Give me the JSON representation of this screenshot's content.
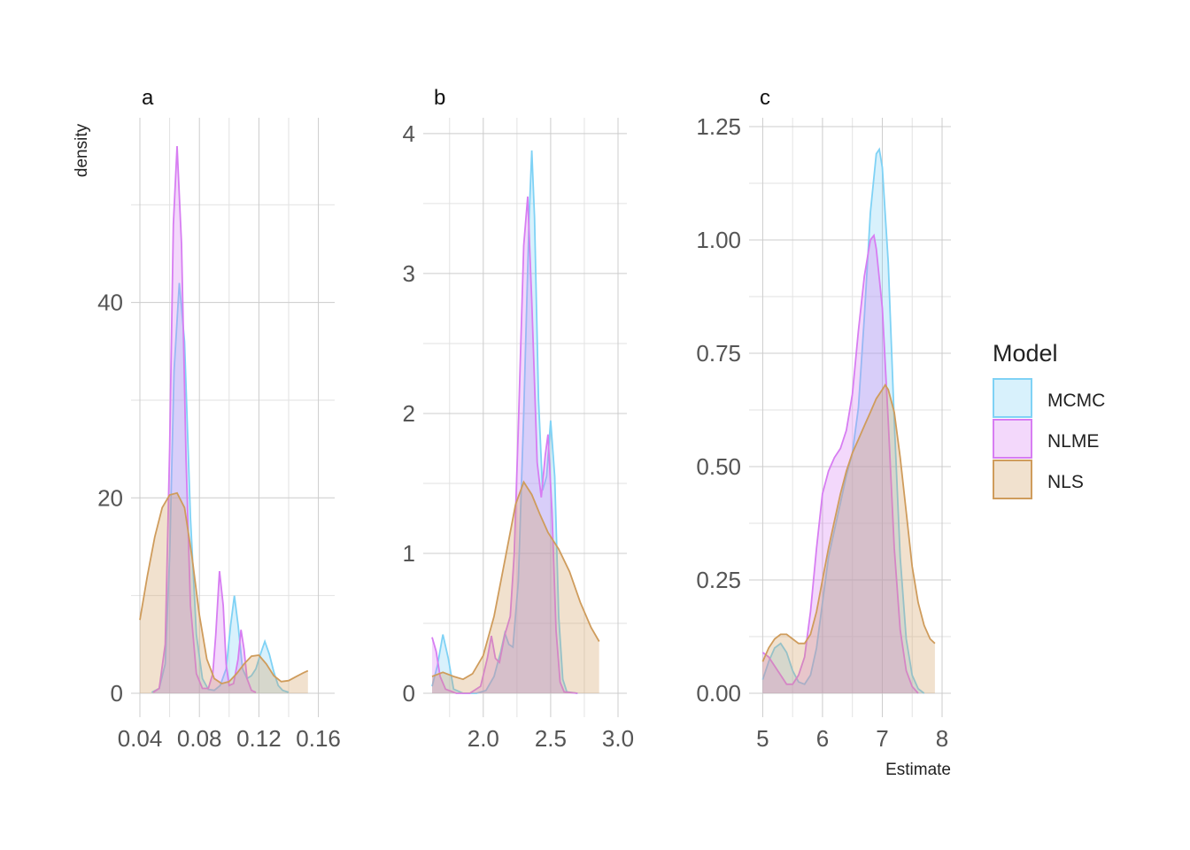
{
  "colors": {
    "MCMC": "#7fd2f5",
    "NLME": "#d77df2",
    "NLS": "#cf9c5c"
  },
  "legend": {
    "title": "Model",
    "items": [
      {
        "name": "MCMC",
        "label": "MCMC"
      },
      {
        "name": "NLME",
        "label": "NLME"
      },
      {
        "name": "NLS",
        "label": "NLS"
      }
    ]
  },
  "axis_titles": {
    "y": "density",
    "x": "Estimate"
  },
  "chart_data": [
    {
      "type": "area",
      "panel": "a",
      "xlim": [
        0.04,
        0.165
      ],
      "ylim": [
        0,
        58
      ],
      "xticks": [
        0.04,
        0.08,
        0.12,
        0.16
      ],
      "xtick_labels": [
        "0.04",
        "0.08",
        "0.12",
        "0.16"
      ],
      "yticks": [
        0,
        20,
        40
      ],
      "ytick_labels": [
        "0",
        "20",
        "40"
      ],
      "grid": true,
      "series": [
        {
          "name": "MCMC",
          "points": [
            [
              0.048,
              0.1
            ],
            [
              0.053,
              0.5
            ],
            [
              0.057,
              3
            ],
            [
              0.06,
              14
            ],
            [
              0.063,
              33
            ],
            [
              0.0665,
              42
            ],
            [
              0.07,
              36
            ],
            [
              0.074,
              18
            ],
            [
              0.078,
              6
            ],
            [
              0.082,
              1.5
            ],
            [
              0.086,
              0.4
            ],
            [
              0.09,
              0.3
            ],
            [
              0.094,
              0.8
            ],
            [
              0.098,
              2.5
            ],
            [
              0.101,
              7
            ],
            [
              0.1035,
              10
            ],
            [
              0.106,
              7
            ],
            [
              0.109,
              2.5
            ],
            [
              0.112,
              1.5
            ],
            [
              0.115,
              1.8
            ],
            [
              0.118,
              2.5
            ],
            [
              0.121,
              4
            ],
            [
              0.124,
              5.3
            ],
            [
              0.127,
              4
            ],
            [
              0.13,
              2.2
            ],
            [
              0.133,
              0.8
            ],
            [
              0.136,
              0.3
            ],
            [
              0.14,
              0.1
            ]
          ]
        },
        {
          "name": "NLME",
          "points": [
            [
              0.049,
              0.1
            ],
            [
              0.053,
              0.5
            ],
            [
              0.057,
              5
            ],
            [
              0.06,
              25
            ],
            [
              0.0625,
              48
            ],
            [
              0.065,
              56
            ],
            [
              0.068,
              46
            ],
            [
              0.071,
              24
            ],
            [
              0.074,
              9
            ],
            [
              0.078,
              2
            ],
            [
              0.082,
              0.5
            ],
            [
              0.086,
              0.5
            ],
            [
              0.089,
              2
            ],
            [
              0.091,
              6
            ],
            [
              0.0935,
              12.5
            ],
            [
              0.096,
              9
            ],
            [
              0.098,
              3
            ],
            [
              0.1,
              0.8
            ],
            [
              0.103,
              1
            ],
            [
              0.106,
              3.5
            ],
            [
              0.108,
              6.5
            ],
            [
              0.11,
              4.5
            ],
            [
              0.112,
              1.5
            ],
            [
              0.115,
              0.3
            ],
            [
              0.118,
              0.1
            ]
          ]
        },
        {
          "name": "NLS",
          "points": [
            [
              0.04,
              7.5
            ],
            [
              0.045,
              12
            ],
            [
              0.05,
              16
            ],
            [
              0.055,
              19
            ],
            [
              0.06,
              20.3
            ],
            [
              0.065,
              20.5
            ],
            [
              0.07,
              19
            ],
            [
              0.075,
              14
            ],
            [
              0.08,
              8
            ],
            [
              0.085,
              3.5
            ],
            [
              0.09,
              1.5
            ],
            [
              0.095,
              1
            ],
            [
              0.1,
              1.2
            ],
            [
              0.105,
              2
            ],
            [
              0.11,
              3
            ],
            [
              0.115,
              3.8
            ],
            [
              0.12,
              3.9
            ],
            [
              0.125,
              3
            ],
            [
              0.13,
              1.8
            ],
            [
              0.135,
              1.2
            ],
            [
              0.14,
              1.3
            ],
            [
              0.145,
              1.7
            ],
            [
              0.15,
              2.1
            ],
            [
              0.153,
              2.3
            ]
          ]
        }
      ]
    },
    {
      "type": "area",
      "panel": "b",
      "xlim": [
        1.62,
        3.0
      ],
      "ylim": [
        0,
        4.05
      ],
      "xticks": [
        2.0,
        2.5,
        3.0
      ],
      "xtick_labels": [
        "2.0",
        "2.5",
        "3.0"
      ],
      "yticks": [
        0,
        1,
        2,
        3,
        4
      ],
      "ytick_labels": [
        "0",
        "1",
        "2",
        "3",
        "4"
      ],
      "grid": true,
      "series": [
        {
          "name": "MCMC",
          "points": [
            [
              1.62,
              0.05
            ],
            [
              1.66,
              0.2
            ],
            [
              1.7,
              0.42
            ],
            [
              1.74,
              0.25
            ],
            [
              1.78,
              0.03
            ],
            [
              1.85,
              0.0
            ],
            [
              1.95,
              0.0
            ],
            [
              2.02,
              0.02
            ],
            [
              2.08,
              0.12
            ],
            [
              2.13,
              0.3
            ],
            [
              2.16,
              0.43
            ],
            [
              2.19,
              0.35
            ],
            [
              2.22,
              0.33
            ],
            [
              2.26,
              0.8
            ],
            [
              2.3,
              2.0
            ],
            [
              2.34,
              3.4
            ],
            [
              2.36,
              3.88
            ],
            [
              2.38,
              3.4
            ],
            [
              2.41,
              2.1
            ],
            [
              2.44,
              1.45
            ],
            [
              2.47,
              1.55
            ],
            [
              2.5,
              1.95
            ],
            [
              2.53,
              1.55
            ],
            [
              2.56,
              0.55
            ],
            [
              2.59,
              0.1
            ],
            [
              2.62,
              0.01
            ],
            [
              2.7,
              0.0
            ]
          ]
        },
        {
          "name": "NLME",
          "points": [
            [
              1.62,
              0.4
            ],
            [
              1.65,
              0.3
            ],
            [
              1.68,
              0.12
            ],
            [
              1.72,
              0.03
            ],
            [
              1.8,
              0.0
            ],
            [
              1.9,
              0.0
            ],
            [
              1.98,
              0.05
            ],
            [
              2.03,
              0.25
            ],
            [
              2.06,
              0.41
            ],
            [
              2.09,
              0.25
            ],
            [
              2.12,
              0.22
            ],
            [
              2.16,
              0.42
            ],
            [
              2.2,
              0.55
            ],
            [
              2.23,
              1.0
            ],
            [
              2.26,
              1.9
            ],
            [
              2.3,
              3.2
            ],
            [
              2.33,
              3.55
            ],
            [
              2.36,
              2.8
            ],
            [
              2.4,
              1.65
            ],
            [
              2.43,
              1.4
            ],
            [
              2.46,
              1.7
            ],
            [
              2.48,
              1.85
            ],
            [
              2.51,
              1.3
            ],
            [
              2.54,
              0.45
            ],
            [
              2.57,
              0.08
            ],
            [
              2.6,
              0.01
            ],
            [
              2.7,
              0.0
            ]
          ]
        },
        {
          "name": "NLS",
          "points": [
            [
              1.62,
              0.12
            ],
            [
              1.7,
              0.15
            ],
            [
              1.78,
              0.12
            ],
            [
              1.85,
              0.1
            ],
            [
              1.92,
              0.14
            ],
            [
              2.0,
              0.27
            ],
            [
              2.08,
              0.55
            ],
            [
              2.16,
              0.95
            ],
            [
              2.24,
              1.35
            ],
            [
              2.3,
              1.51
            ],
            [
              2.36,
              1.42
            ],
            [
              2.42,
              1.28
            ],
            [
              2.48,
              1.15
            ],
            [
              2.56,
              1.03
            ],
            [
              2.64,
              0.87
            ],
            [
              2.72,
              0.65
            ],
            [
              2.8,
              0.47
            ],
            [
              2.86,
              0.37
            ]
          ]
        }
      ]
    },
    {
      "type": "area",
      "panel": "c",
      "xlim": [
        4.92,
        8.0
      ],
      "ylim": [
        0,
        1.25
      ],
      "xticks": [
        5,
        6,
        7,
        8
      ],
      "xtick_labels": [
        "5",
        "6",
        "7",
        "8"
      ],
      "yticks": [
        0,
        0.25,
        0.5,
        0.75,
        1.0,
        1.25
      ],
      "ytick_labels": [
        "0.00",
        "0.25",
        "0.50",
        "0.75",
        "1.00",
        "1.25"
      ],
      "grid": true,
      "series": [
        {
          "name": "MCMC",
          "points": [
            [
              5.0,
              0.03
            ],
            [
              5.1,
              0.07
            ],
            [
              5.2,
              0.1
            ],
            [
              5.3,
              0.11
            ],
            [
              5.4,
              0.09
            ],
            [
              5.5,
              0.05
            ],
            [
              5.6,
              0.025
            ],
            [
              5.7,
              0.02
            ],
            [
              5.8,
              0.04
            ],
            [
              5.9,
              0.1
            ],
            [
              6.0,
              0.2
            ],
            [
              6.1,
              0.3
            ],
            [
              6.2,
              0.36
            ],
            [
              6.3,
              0.42
            ],
            [
              6.4,
              0.48
            ],
            [
              6.5,
              0.53
            ],
            [
              6.6,
              0.63
            ],
            [
              6.7,
              0.83
            ],
            [
              6.8,
              1.06
            ],
            [
              6.9,
              1.19
            ],
            [
              6.95,
              1.2
            ],
            [
              7.0,
              1.16
            ],
            [
              7.1,
              0.95
            ],
            [
              7.2,
              0.6
            ],
            [
              7.3,
              0.3
            ],
            [
              7.4,
              0.12
            ],
            [
              7.5,
              0.04
            ],
            [
              7.6,
              0.01
            ],
            [
              7.7,
              0.0
            ]
          ]
        },
        {
          "name": "NLME",
          "points": [
            [
              5.0,
              0.09
            ],
            [
              5.1,
              0.08
            ],
            [
              5.2,
              0.06
            ],
            [
              5.3,
              0.04
            ],
            [
              5.4,
              0.02
            ],
            [
              5.5,
              0.02
            ],
            [
              5.6,
              0.04
            ],
            [
              5.7,
              0.08
            ],
            [
              5.8,
              0.18
            ],
            [
              5.9,
              0.32
            ],
            [
              6.0,
              0.44
            ],
            [
              6.1,
              0.49
            ],
            [
              6.2,
              0.52
            ],
            [
              6.3,
              0.54
            ],
            [
              6.4,
              0.58
            ],
            [
              6.5,
              0.66
            ],
            [
              6.6,
              0.8
            ],
            [
              6.7,
              0.92
            ],
            [
              6.8,
              1.0
            ],
            [
              6.86,
              1.01
            ],
            [
              6.9,
              0.98
            ],
            [
              7.0,
              0.85
            ],
            [
              7.1,
              0.6
            ],
            [
              7.2,
              0.32
            ],
            [
              7.3,
              0.14
            ],
            [
              7.4,
              0.05
            ],
            [
              7.5,
              0.015
            ],
            [
              7.6,
              0.0
            ]
          ]
        },
        {
          "name": "NLS",
          "points": [
            [
              5.0,
              0.07
            ],
            [
              5.1,
              0.1
            ],
            [
              5.2,
              0.12
            ],
            [
              5.3,
              0.13
            ],
            [
              5.4,
              0.13
            ],
            [
              5.5,
              0.12
            ],
            [
              5.6,
              0.11
            ],
            [
              5.7,
              0.11
            ],
            [
              5.8,
              0.13
            ],
            [
              5.9,
              0.18
            ],
            [
              6.0,
              0.25
            ],
            [
              6.1,
              0.32
            ],
            [
              6.2,
              0.38
            ],
            [
              6.3,
              0.44
            ],
            [
              6.4,
              0.49
            ],
            [
              6.5,
              0.53
            ],
            [
              6.6,
              0.56
            ],
            [
              6.7,
              0.59
            ],
            [
              6.8,
              0.62
            ],
            [
              6.9,
              0.65
            ],
            [
              7.0,
              0.67
            ],
            [
              7.05,
              0.68
            ],
            [
              7.1,
              0.67
            ],
            [
              7.2,
              0.62
            ],
            [
              7.3,
              0.52
            ],
            [
              7.4,
              0.4
            ],
            [
              7.5,
              0.28
            ],
            [
              7.6,
              0.2
            ],
            [
              7.7,
              0.15
            ],
            [
              7.8,
              0.12
            ],
            [
              7.88,
              0.11
            ]
          ]
        }
      ]
    }
  ]
}
